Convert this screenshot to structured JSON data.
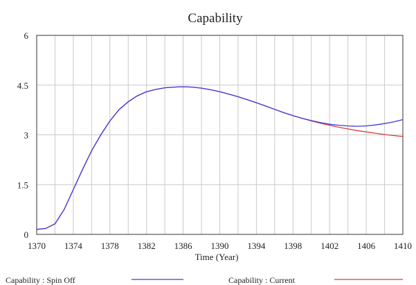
{
  "chart_data": {
    "type": "line",
    "title": "Capability",
    "xlabel": "Time (Year)",
    "ylabel": "",
    "xlim": [
      1370,
      1410
    ],
    "ylim": [
      0,
      6
    ],
    "x_ticks": [
      1370,
      1374,
      1378,
      1382,
      1386,
      1390,
      1394,
      1398,
      1402,
      1406,
      1410
    ],
    "y_ticks": [
      0,
      1.5,
      3,
      4.5,
      6
    ],
    "y_tick_labels": [
      "0",
      "1.5",
      "3",
      "4.5",
      "6"
    ],
    "x_minor_grid_step": 2,
    "grid": true,
    "legend_position": "bottom",
    "series": [
      {
        "name": "Capability : Spin Off",
        "color": "#3b3bdc",
        "x": [
          1370,
          1371,
          1372,
          1373,
          1374,
          1375,
          1376,
          1377,
          1378,
          1379,
          1380,
          1381,
          1382,
          1383,
          1384,
          1385,
          1386,
          1387,
          1388,
          1389,
          1390,
          1391,
          1392,
          1393,
          1394,
          1395,
          1396,
          1397,
          1398,
          1399,
          1400,
          1401,
          1402,
          1403,
          1404,
          1405,
          1406,
          1407,
          1408,
          1409,
          1410
        ],
        "y": [
          0.15,
          0.18,
          0.32,
          0.75,
          1.35,
          1.95,
          2.52,
          3.0,
          3.42,
          3.76,
          4.0,
          4.18,
          4.3,
          4.37,
          4.42,
          4.44,
          4.45,
          4.44,
          4.41,
          4.36,
          4.3,
          4.23,
          4.15,
          4.06,
          3.97,
          3.87,
          3.77,
          3.67,
          3.58,
          3.5,
          3.43,
          3.37,
          3.32,
          3.29,
          3.27,
          3.26,
          3.27,
          3.3,
          3.34,
          3.39,
          3.46
        ]
      },
      {
        "name": "Capability : Current",
        "color": "#dc3b3b",
        "x": [
          1370,
          1371,
          1372,
          1373,
          1374,
          1375,
          1376,
          1377,
          1378,
          1379,
          1380,
          1381,
          1382,
          1383,
          1384,
          1385,
          1386,
          1387,
          1388,
          1389,
          1390,
          1391,
          1392,
          1393,
          1394,
          1395,
          1396,
          1397,
          1398,
          1399,
          1400,
          1401,
          1402,
          1403,
          1404,
          1405,
          1406,
          1407,
          1408,
          1409,
          1410
        ],
        "y": [
          0.15,
          0.18,
          0.32,
          0.75,
          1.35,
          1.95,
          2.52,
          3.0,
          3.42,
          3.76,
          4.0,
          4.18,
          4.3,
          4.37,
          4.42,
          4.44,
          4.45,
          4.44,
          4.41,
          4.36,
          4.3,
          4.23,
          4.15,
          4.06,
          3.97,
          3.87,
          3.77,
          3.67,
          3.58,
          3.5,
          3.42,
          3.35,
          3.29,
          3.23,
          3.18,
          3.13,
          3.09,
          3.05,
          3.01,
          2.98,
          2.95
        ]
      }
    ]
  }
}
